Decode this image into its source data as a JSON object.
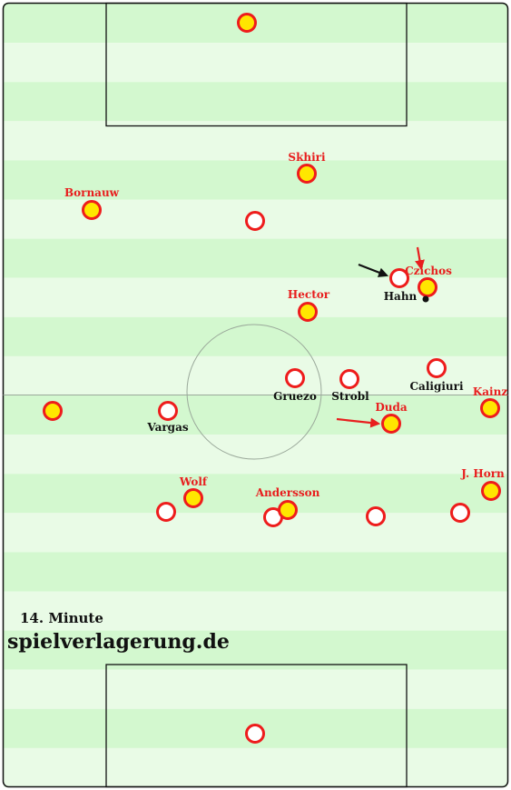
{
  "colors": {
    "stripe_light": "#e9fbe6",
    "stripe_dark": "#d3f8cf",
    "line": "#222222",
    "center_circle": "#9aa89a",
    "team_a_fill": "#ffe600",
    "team_a_stroke": "#ee1c1c",
    "team_b_fill": "#ffffff",
    "team_b_stroke": "#ee1c1c",
    "label_red": "#e81e1e",
    "label_black": "#111111"
  },
  "minute_label": "14. Minute",
  "watermark": "spielverlagerung.de",
  "players": [
    {
      "id": "goalkeeper-top",
      "team": "a",
      "name": ""
    },
    {
      "id": "skhiri",
      "team": "a",
      "name": "Skhiri",
      "label_color": "red"
    },
    {
      "id": "bornauw",
      "team": "a",
      "name": "Bornauw",
      "label_color": "red"
    },
    {
      "id": "opponent-mid-1",
      "team": "b",
      "name": ""
    },
    {
      "id": "hahn",
      "team": "b",
      "name": "Hahn",
      "label_color": "black"
    },
    {
      "id": "czichos",
      "team": "a",
      "name": "Czichos",
      "label_color": "red"
    },
    {
      "id": "hector",
      "team": "a",
      "name": "Hector",
      "label_color": "red"
    },
    {
      "id": "gruezo",
      "team": "b",
      "name": "Gruezo",
      "label_color": "black"
    },
    {
      "id": "strobl",
      "team": "b",
      "name": "Strobl",
      "label_color": "black"
    },
    {
      "id": "caligiuri",
      "team": "b",
      "name": "Caligiuri",
      "label_color": "black"
    },
    {
      "id": "left-wide",
      "team": "a",
      "name": ""
    },
    {
      "id": "vargas",
      "team": "b",
      "name": "Vargas",
      "label_color": "black"
    },
    {
      "id": "duda",
      "team": "a",
      "name": "Duda",
      "label_color": "red"
    },
    {
      "id": "kainz",
      "team": "a",
      "name": "Kainz",
      "label_color": "red"
    },
    {
      "id": "wolf",
      "team": "a",
      "name": "Wolf",
      "label_color": "red"
    },
    {
      "id": "andersson",
      "team": "a",
      "name": "Andersson",
      "label_color": "red"
    },
    {
      "id": "j-horn",
      "team": "a",
      "name": "J. Horn",
      "label_color": "red"
    },
    {
      "id": "opponent-def-1",
      "team": "b",
      "name": ""
    },
    {
      "id": "opponent-def-2",
      "team": "b",
      "name": ""
    },
    {
      "id": "opponent-def-3",
      "team": "b",
      "name": ""
    },
    {
      "id": "opponent-def-4",
      "team": "b",
      "name": ""
    },
    {
      "id": "goalkeeper-bottom",
      "team": "b",
      "name": ""
    }
  ],
  "arrows": [
    {
      "id": "arrow-to-hahn",
      "color": "black"
    },
    {
      "id": "arrow-to-czichos",
      "color": "red"
    },
    {
      "id": "arrow-to-duda",
      "color": "red"
    }
  ]
}
